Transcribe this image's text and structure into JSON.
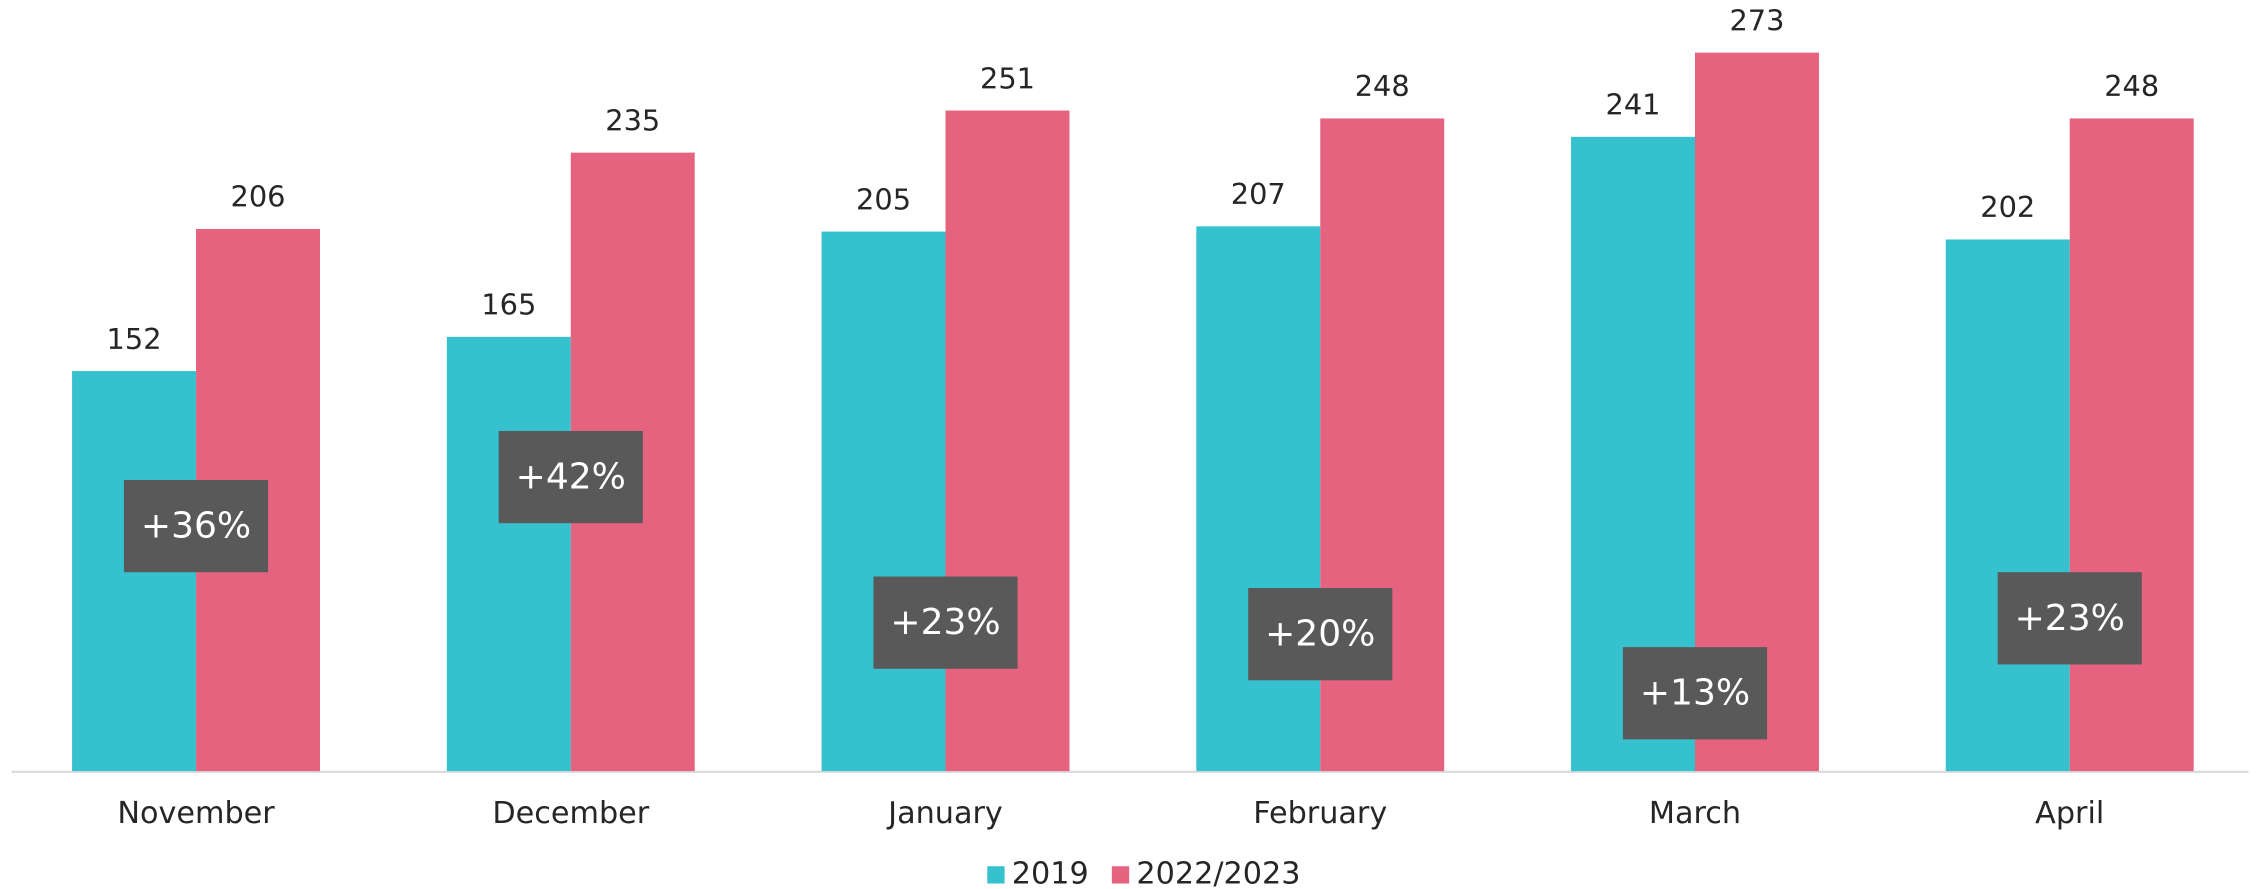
{
  "chart_data": {
    "type": "bar",
    "categories": [
      "November",
      "December",
      "January",
      "February",
      "March",
      "April"
    ],
    "series": [
      {
        "name": "2019",
        "color": "#36c1cf",
        "values": [
          152,
          165,
          205,
          207,
          241,
          202
        ]
      },
      {
        "name": "2022/2023",
        "color": "#e5637f",
        "values": [
          206,
          235,
          251,
          248,
          273,
          248
        ]
      }
    ],
    "annotations": [
      "+36%",
      "+42%",
      "+23%",
      "+20%",
      "+13%",
      "+23%"
    ],
    "ylim": [
      0,
      293
    ],
    "legend": "bottom"
  }
}
